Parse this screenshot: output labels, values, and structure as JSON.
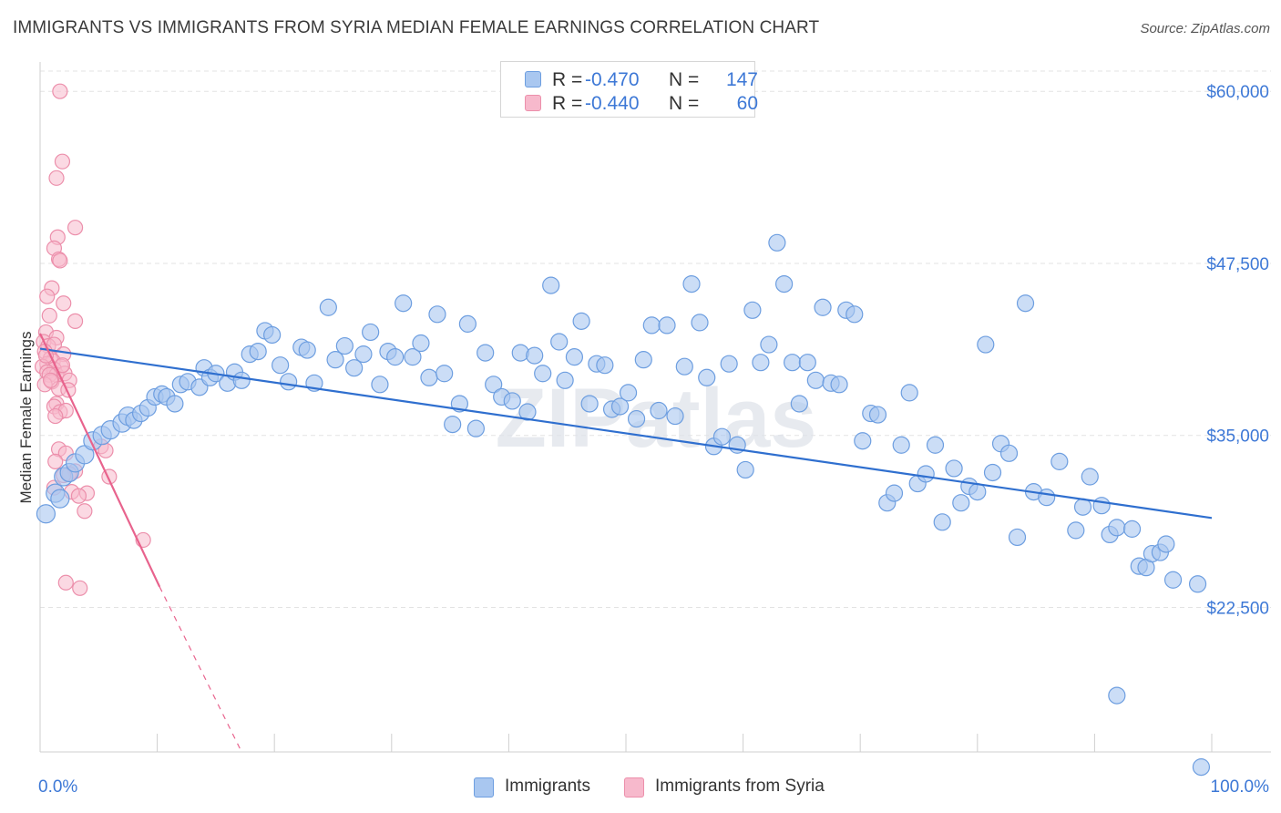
{
  "title": "IMMIGRANTS VS IMMIGRANTS FROM SYRIA MEDIAN FEMALE EARNINGS CORRELATION CHART",
  "source": "Source: ZipAtlas.com",
  "watermark": "ZIPatlas",
  "legend": {
    "rows": [
      {
        "r_label": "R =",
        "r_value": "-0.470",
        "n_label": "N =",
        "n_value": "147"
      },
      {
        "r_label": "R =",
        "r_value": "-0.440",
        "n_label": "N =",
        "n_value": "60"
      }
    ]
  },
  "bottom_legend": [
    "Immigrants",
    "Immigrants from Syria"
  ],
  "colors": {
    "blue_fill": "#a9c7f0",
    "blue_stroke": "#6d9ee0",
    "blue_line": "#2f6fcf",
    "pink_fill": "#f7b9cc",
    "pink_stroke": "#ec8fab",
    "pink_line": "#e8638d",
    "axis_label": "#3d78d6",
    "grid": "#e3e3e3"
  },
  "chart_data": {
    "type": "scatter",
    "title": "IMMIGRANTS VS IMMIGRANTS FROM SYRIA MEDIAN FEMALE EARNINGS CORRELATION CHART",
    "xlabel": "",
    "ylabel": "Median Female Earnings",
    "xlim": [
      0,
      100
    ],
    "ylim": [
      12000,
      62000
    ],
    "x_tick_labels": [
      "0.0%",
      "100.0%"
    ],
    "y_ticks": [
      22500,
      35000,
      47500,
      60000
    ],
    "y_tick_labels": [
      "$22,500",
      "$35,000",
      "$47,500",
      "$60,000"
    ],
    "grid": true,
    "legend_position": "top-center",
    "series": [
      {
        "name": "Immigrants",
        "r": -0.47,
        "n": 147,
        "trend": {
          "x": [
            0,
            100
          ],
          "y": [
            41300,
            29000
          ]
        },
        "points": [
          [
            0.5,
            29300
          ],
          [
            1.3,
            30800
          ],
          [
            1.7,
            30400
          ],
          [
            2.0,
            32000
          ],
          [
            2.5,
            32300
          ],
          [
            3.0,
            33000
          ],
          [
            3.8,
            33600
          ],
          [
            4.5,
            34600
          ],
          [
            5.3,
            35000
          ],
          [
            6.0,
            35400
          ],
          [
            7.0,
            35900
          ],
          [
            7.5,
            36400
          ],
          [
            8.0,
            36100
          ],
          [
            8.6,
            36600
          ],
          [
            9.2,
            37000
          ],
          [
            9.8,
            37800
          ],
          [
            10.4,
            38000
          ],
          [
            10.8,
            37800
          ],
          [
            11.5,
            37300
          ],
          [
            12.0,
            38700
          ],
          [
            12.6,
            38900
          ],
          [
            13.6,
            38500
          ],
          [
            14.0,
            39900
          ],
          [
            14.5,
            39200
          ],
          [
            15.0,
            39500
          ],
          [
            16.0,
            38800
          ],
          [
            16.6,
            39600
          ],
          [
            17.2,
            39000
          ],
          [
            17.9,
            40900
          ],
          [
            18.6,
            41100
          ],
          [
            19.2,
            42600
          ],
          [
            19.8,
            42300
          ],
          [
            20.5,
            40100
          ],
          [
            21.2,
            38900
          ],
          [
            22.3,
            41400
          ],
          [
            22.8,
            41200
          ],
          [
            23.4,
            38800
          ],
          [
            24.6,
            44300
          ],
          [
            25.2,
            40500
          ],
          [
            26.0,
            41500
          ],
          [
            26.8,
            39900
          ],
          [
            27.6,
            40900
          ],
          [
            28.2,
            42500
          ],
          [
            29.0,
            38700
          ],
          [
            29.7,
            41100
          ],
          [
            30.3,
            40700
          ],
          [
            31.0,
            44600
          ],
          [
            31.8,
            40700
          ],
          [
            32.5,
            41700
          ],
          [
            33.2,
            39200
          ],
          [
            33.9,
            43800
          ],
          [
            34.5,
            39500
          ],
          [
            35.2,
            35800
          ],
          [
            35.8,
            37300
          ],
          [
            36.5,
            43100
          ],
          [
            37.2,
            35500
          ],
          [
            38.0,
            41000
          ],
          [
            38.7,
            38700
          ],
          [
            39.4,
            37800
          ],
          [
            40.3,
            37500
          ],
          [
            41.0,
            41000
          ],
          [
            41.6,
            36700
          ],
          [
            42.2,
            40800
          ],
          [
            42.9,
            39500
          ],
          [
            43.6,
            45900
          ],
          [
            44.3,
            41800
          ],
          [
            44.8,
            39000
          ],
          [
            45.6,
            40700
          ],
          [
            46.2,
            43300
          ],
          [
            46.9,
            37300
          ],
          [
            47.5,
            40200
          ],
          [
            48.2,
            40100
          ],
          [
            48.8,
            36900
          ],
          [
            49.5,
            37100
          ],
          [
            50.2,
            38100
          ],
          [
            50.9,
            36200
          ],
          [
            51.5,
            40500
          ],
          [
            52.2,
            43000
          ],
          [
            52.8,
            36800
          ],
          [
            53.5,
            43000
          ],
          [
            54.2,
            36400
          ],
          [
            55.0,
            40000
          ],
          [
            55.6,
            46000
          ],
          [
            56.3,
            43200
          ],
          [
            56.9,
            39200
          ],
          [
            57.5,
            34200
          ],
          [
            58.2,
            34900
          ],
          [
            58.8,
            40200
          ],
          [
            59.5,
            34300
          ],
          [
            60.2,
            32500
          ],
          [
            60.8,
            44100
          ],
          [
            61.5,
            40300
          ],
          [
            62.2,
            41600
          ],
          [
            62.9,
            49000
          ],
          [
            63.5,
            46000
          ],
          [
            64.2,
            40300
          ],
          [
            64.8,
            37300
          ],
          [
            65.5,
            40300
          ],
          [
            66.2,
            39000
          ],
          [
            66.8,
            44300
          ],
          [
            67.5,
            38800
          ],
          [
            68.2,
            38700
          ],
          [
            68.8,
            44100
          ],
          [
            69.5,
            43800
          ],
          [
            70.2,
            34600
          ],
          [
            70.9,
            36600
          ],
          [
            71.5,
            36500
          ],
          [
            72.3,
            30100
          ],
          [
            72.9,
            30800
          ],
          [
            73.5,
            34300
          ],
          [
            74.2,
            38100
          ],
          [
            74.9,
            31500
          ],
          [
            75.6,
            32200
          ],
          [
            76.4,
            34300
          ],
          [
            77.0,
            28700
          ],
          [
            78.0,
            32600
          ],
          [
            78.6,
            30100
          ],
          [
            79.3,
            31300
          ],
          [
            80.0,
            30900
          ],
          [
            80.7,
            41600
          ],
          [
            81.3,
            32300
          ],
          [
            82.0,
            34400
          ],
          [
            82.7,
            33700
          ],
          [
            83.4,
            27600
          ],
          [
            84.1,
            44600
          ],
          [
            84.8,
            30900
          ],
          [
            85.9,
            30500
          ],
          [
            87.0,
            33100
          ],
          [
            88.4,
            28100
          ],
          [
            89.0,
            29800
          ],
          [
            89.6,
            32000
          ],
          [
            90.6,
            29900
          ],
          [
            91.3,
            27800
          ],
          [
            91.9,
            28300
          ],
          [
            93.2,
            28200
          ],
          [
            93.8,
            25500
          ],
          [
            94.4,
            25400
          ],
          [
            94.9,
            26400
          ],
          [
            95.6,
            26500
          ],
          [
            96.1,
            27100
          ],
          [
            96.7,
            24500
          ],
          [
            98.8,
            24200
          ],
          [
            91.9,
            16100
          ],
          [
            99.1,
            10900
          ]
        ]
      },
      {
        "name": "Immigrants from Syria",
        "r": -0.44,
        "n": 60,
        "trend": {
          "x": [
            0,
            10.2
          ],
          "y": [
            42400,
            24000
          ],
          "dashed_to": {
            "x": 17.2,
            "y": 12000
          }
        },
        "points": [
          [
            1.7,
            60000
          ],
          [
            1.9,
            54900
          ],
          [
            1.4,
            53700
          ],
          [
            3.0,
            50100
          ],
          [
            1.5,
            49400
          ],
          [
            1.2,
            48600
          ],
          [
            1.6,
            47800
          ],
          [
            1.7,
            47700
          ],
          [
            1.0,
            45700
          ],
          [
            0.6,
            45100
          ],
          [
            2.0,
            44600
          ],
          [
            0.8,
            43700
          ],
          [
            3.0,
            43300
          ],
          [
            0.5,
            42500
          ],
          [
            1.4,
            42100
          ],
          [
            0.3,
            41800
          ],
          [
            0.7,
            41500
          ],
          [
            1.2,
            41600
          ],
          [
            0.4,
            41100
          ],
          [
            2.0,
            40900
          ],
          [
            0.9,
            40600
          ],
          [
            1.1,
            40400
          ],
          [
            0.6,
            40200
          ],
          [
            1.8,
            40000
          ],
          [
            0.2,
            40000
          ],
          [
            1.2,
            39800
          ],
          [
            0.6,
            39600
          ],
          [
            1.4,
            39400
          ],
          [
            2.1,
            39500
          ],
          [
            0.8,
            39400
          ],
          [
            2.5,
            39000
          ],
          [
            1.0,
            38900
          ],
          [
            0.4,
            38700
          ],
          [
            1.6,
            38400
          ],
          [
            2.4,
            38300
          ],
          [
            1.4,
            37300
          ],
          [
            1.2,
            37100
          ],
          [
            1.7,
            36700
          ],
          [
            2.2,
            36800
          ],
          [
            1.3,
            36400
          ],
          [
            1.6,
            34000
          ],
          [
            5.2,
            34200
          ],
          [
            2.2,
            33700
          ],
          [
            5.6,
            33900
          ],
          [
            1.3,
            33100
          ],
          [
            3.0,
            32400
          ],
          [
            2.5,
            32200
          ],
          [
            2.0,
            32100
          ],
          [
            5.9,
            32000
          ],
          [
            1.2,
            31200
          ],
          [
            2.7,
            30900
          ],
          [
            4.0,
            30800
          ],
          [
            3.3,
            30600
          ],
          [
            3.8,
            29500
          ],
          [
            8.8,
            27400
          ],
          [
            2.2,
            24300
          ],
          [
            3.4,
            23900
          ],
          [
            0.5,
            40800
          ],
          [
            1.9,
            40100
          ],
          [
            0.9,
            39000
          ]
        ]
      }
    ]
  }
}
